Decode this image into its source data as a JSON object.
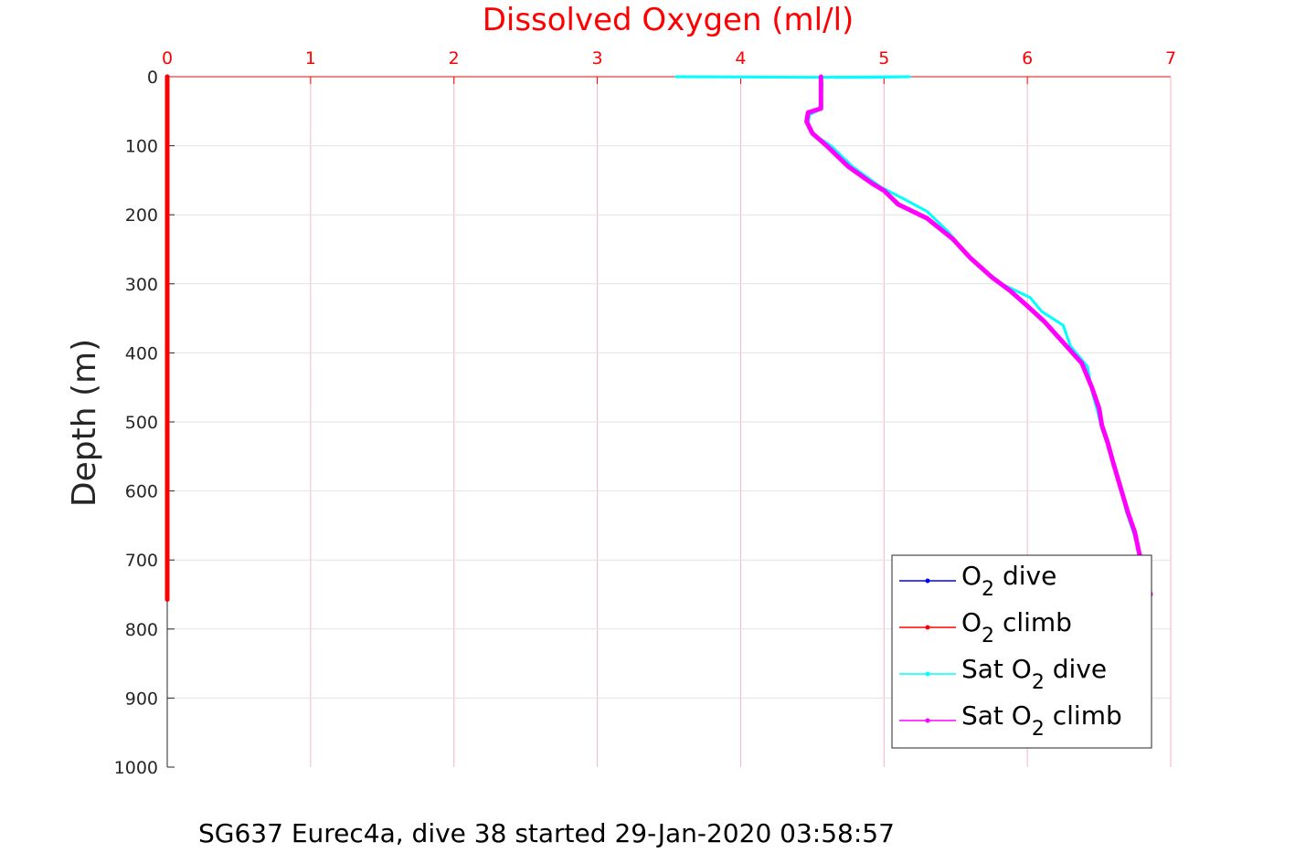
{
  "chart_data": {
    "type": "line",
    "title": "Dissolved Oxygen (ml/l)",
    "xlabel": "",
    "ylabel": "Depth (m)",
    "xlim": [
      0,
      7
    ],
    "ylim": [
      0,
      1000
    ],
    "y_reversed": true,
    "x_axis_location": "top",
    "x_ticks": [
      "0",
      "1",
      "2",
      "3",
      "4",
      "5",
      "6",
      "7"
    ],
    "y_ticks": [
      "0",
      "100",
      "200",
      "300",
      "400",
      "500",
      "600",
      "700",
      "800",
      "900",
      "1000"
    ],
    "grid": true,
    "legend_location": "bottom-right",
    "colors": {
      "title": "#ff0000",
      "x_axis": "#ff0000",
      "grid": "#f4b6c2",
      "o2_dive": "#0000ff",
      "o2_climb": "#ff0000",
      "sat_dive": "#00ffff",
      "sat_climb": "#ff00ff"
    },
    "series": [
      {
        "name": "O2 dive",
        "legend_base": "O",
        "legend_sub": "2",
        "legend_post": " dive",
        "color": "#0000ff",
        "points": [
          [
            0,
            0
          ],
          [
            0,
            100
          ],
          [
            0,
            200
          ],
          [
            0,
            300
          ],
          [
            0,
            400
          ],
          [
            0,
            500
          ],
          [
            0,
            600
          ],
          [
            0,
            700
          ],
          [
            0,
            757
          ]
        ]
      },
      {
        "name": "O2 climb",
        "legend_base": "O",
        "legend_sub": "2",
        "legend_post": " climb",
        "color": "#ff0000",
        "points": [
          [
            0,
            0
          ],
          [
            0,
            100
          ],
          [
            0,
            200
          ],
          [
            0,
            300
          ],
          [
            0,
            400
          ],
          [
            0,
            500
          ],
          [
            0,
            600
          ],
          [
            0,
            700
          ],
          [
            0,
            757
          ]
        ]
      },
      {
        "name": "Sat O2 dive",
        "legend_base": "Sat O",
        "legend_sub": "2",
        "legend_post": " dive",
        "color": "#00ffff",
        "points": [
          [
            3.55,
            0
          ],
          [
            4.9,
            1
          ],
          [
            5.18,
            0
          ],
          [
            4.55,
            1
          ],
          [
            4.57,
            10
          ],
          [
            4.56,
            30
          ],
          [
            4.55,
            48
          ],
          [
            4.48,
            55
          ],
          [
            4.47,
            70
          ],
          [
            4.52,
            85
          ],
          [
            4.63,
            100
          ],
          [
            4.78,
            130
          ],
          [
            4.98,
            160
          ],
          [
            5.12,
            175
          ],
          [
            5.3,
            195
          ],
          [
            5.45,
            225
          ],
          [
            5.58,
            258
          ],
          [
            5.7,
            280
          ],
          [
            5.82,
            300
          ],
          [
            6.02,
            320
          ],
          [
            6.1,
            340
          ],
          [
            6.25,
            360
          ],
          [
            6.3,
            390
          ],
          [
            6.42,
            420
          ],
          [
            6.45,
            455
          ],
          [
            6.49,
            485
          ],
          [
            6.52,
            510
          ],
          [
            6.58,
            545
          ],
          [
            6.62,
            575
          ],
          [
            6.66,
            600
          ],
          [
            6.69,
            630
          ],
          [
            6.74,
            660
          ],
          [
            6.78,
            690
          ]
        ]
      },
      {
        "name": "Sat O2 climb",
        "legend_base": "Sat O",
        "legend_sub": "2",
        "legend_post": " climb",
        "color": "#ff00ff",
        "points": [
          [
            4.56,
            0
          ],
          [
            4.56,
            20
          ],
          [
            4.56,
            46
          ],
          [
            4.47,
            52
          ],
          [
            4.46,
            65
          ],
          [
            4.5,
            82
          ],
          [
            4.6,
            100
          ],
          [
            4.75,
            130
          ],
          [
            4.92,
            155
          ],
          [
            5.0,
            165
          ],
          [
            5.1,
            185
          ],
          [
            5.3,
            205
          ],
          [
            5.48,
            235
          ],
          [
            5.6,
            262
          ],
          [
            5.75,
            290
          ],
          [
            5.88,
            310
          ],
          [
            6.0,
            332
          ],
          [
            6.12,
            355
          ],
          [
            6.25,
            385
          ],
          [
            6.38,
            415
          ],
          [
            6.45,
            450
          ],
          [
            6.5,
            480
          ],
          [
            6.52,
            505
          ],
          [
            6.56,
            530
          ],
          [
            6.6,
            560
          ],
          [
            6.65,
            595
          ],
          [
            6.7,
            630
          ],
          [
            6.75,
            660
          ],
          [
            6.78,
            690
          ],
          [
            6.86,
            750
          ]
        ]
      }
    ]
  },
  "caption": "SG637 Eurec4a, dive 38 started 29-Jan-2020 03:58:57"
}
